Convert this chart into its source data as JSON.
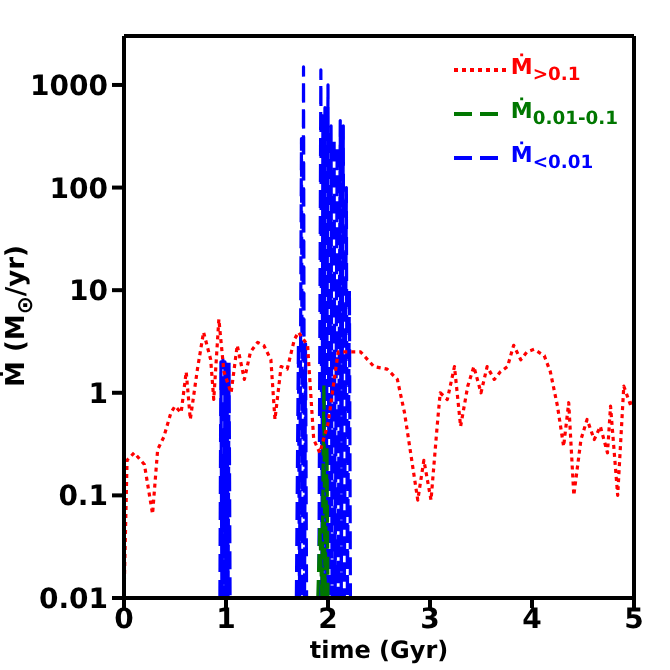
{
  "chart_data": {
    "type": "line",
    "xlabel": "time (Gyr)",
    "ylabel": "Ṁ (M$_{⊙}$/yr)",
    "log": "y",
    "xlim": [
      0,
      5
    ],
    "xticks": [
      0,
      1,
      2,
      3,
      4,
      5
    ],
    "ylim": [
      0.01,
      3000
    ],
    "yticks": [
      0.01,
      0.1,
      1,
      10,
      100,
      1000
    ],
    "legend": "top right",
    "marker": "none",
    "series": [
      {
        "name": "Ṁ$_{>0.1}$",
        "color": "#ff0000",
        "line_style": "dotted",
        "x": [
          0,
          0.03,
          0.1,
          0.2,
          0.28,
          0.33,
          0.39,
          0.46,
          0.5,
          0.56,
          0.61,
          0.65,
          0.72,
          0.78,
          0.85,
          0.88,
          0.93,
          0.98,
          1.05,
          1.11,
          1.18,
          1.24,
          1.31,
          1.37,
          1.44,
          1.48,
          1.54,
          1.6,
          1.67,
          1.71,
          1.8,
          1.86,
          1.92,
          2.0,
          2.1,
          2.22,
          2.32,
          2.45,
          2.58,
          2.68,
          2.75,
          2.81,
          2.88,
          2.94,
          3.01,
          3.07,
          3.1,
          3.17,
          3.24,
          3.3,
          3.37,
          3.43,
          3.5,
          3.56,
          3.63,
          3.69,
          3.76,
          3.82,
          3.89,
          3.95,
          4.02,
          4.12,
          4.18,
          4.25,
          4.31,
          4.36,
          4.41,
          4.48,
          4.54,
          4.61,
          4.67,
          4.74,
          4.77,
          4.84,
          4.9,
          4.97,
          5.0
        ],
        "values": [
          0.01,
          0.22,
          0.26,
          0.2,
          0.066,
          0.28,
          0.37,
          0.64,
          0.74,
          0.64,
          1.6,
          0.55,
          1.7,
          3.9,
          2.1,
          0.86,
          5.2,
          1.6,
          1.0,
          2.9,
          1.35,
          2.5,
          3.1,
          2.9,
          2.1,
          0.55,
          1.8,
          1.7,
          3.3,
          3.9,
          2.9,
          0.35,
          0.26,
          0.5,
          2.5,
          2.5,
          2.5,
          1.8,
          1.7,
          1.35,
          0.64,
          0.26,
          0.09,
          0.22,
          0.09,
          0.47,
          1.0,
          0.86,
          1.8,
          0.47,
          1.16,
          1.8,
          1.0,
          1.8,
          1.35,
          1.6,
          1.8,
          2.9,
          2.1,
          2.5,
          2.65,
          2.3,
          1.6,
          0.74,
          0.3,
          0.8,
          0.1,
          0.35,
          0.55,
          0.35,
          0.47,
          0.26,
          0.74,
          0.1,
          1.16,
          0.74,
          0.86
        ]
      },
      {
        "name": "Ṁ$_{0.01-0.1}$",
        "color": "#007700",
        "line_style": "dashed",
        "x": [
          1.9,
          1.92,
          1.94,
          1.96,
          1.97,
          1.99,
          2.0
        ],
        "values": [
          0.01,
          0.05,
          0.01,
          1.2,
          0.01,
          0.3,
          0.01
        ]
      },
      {
        "name": "Ṁ$_{<0.01}$",
        "color": "#0000ff",
        "line_style": "dashed",
        "x": [
          0.94,
          0.95,
          0.96,
          0.97,
          0.98,
          0.99,
          1.0,
          1.01,
          1.02,
          1.03,
          1.04,
          1.2,
          1.69,
          1.71,
          1.72,
          1.74,
          1.75,
          1.76,
          1.77,
          1.78,
          1.79,
          1.85,
          1.91,
          1.93,
          1.94,
          1.95,
          1.96,
          1.97,
          1.98,
          2.0,
          2.01,
          2.03,
          2.04,
          2.06,
          2.07,
          2.09,
          2.1,
          2.12,
          2.13,
          2.15,
          2.16,
          2.18,
          2.19,
          2.21,
          2.22
        ],
        "values": [
          0.01,
          2.0,
          0.01,
          2.1,
          0.01,
          2.0,
          0.01,
          1.9,
          0.01,
          2.0,
          0.01,
          null,
          0.01,
          3,
          0.01,
          300,
          0.01,
          1500,
          0.01,
          3,
          0.01,
          null,
          0.01,
          1400,
          0.01,
          500,
          0.01,
          600,
          0.01,
          1000,
          0.01,
          400,
          0.01,
          300,
          0.01,
          250,
          0.01,
          450,
          0.01,
          400,
          0.01,
          100,
          0.01,
          10,
          0.01
        ]
      }
    ]
  }
}
